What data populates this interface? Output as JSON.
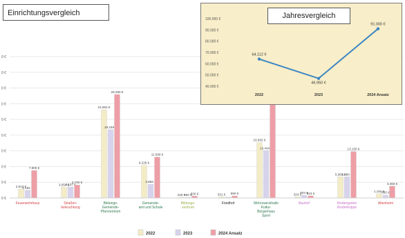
{
  "main_title": "Einrichtungsvergleich",
  "inset_title": "Jahresvergleich",
  "chart_data": [
    {
      "type": "bar",
      "title": "Einrichtungsvergleich",
      "categories": [
        "Feuerwehrhaus",
        "Straßen-beleuchtung",
        "Bildungs-/Gemeinde-Pfarrzentrum",
        "Gemeinde-amt und Schule",
        "Bildungs-zentrum",
        "Friedhof",
        "Mehrzweckhalle/Kultur-/Bürgerhaus/Sport",
        "Bauhof",
        "Kindergarten/Kinderkrippe",
        "Altenheim"
      ],
      "category_colors": [
        "#d04545",
        "#d04545",
        "#2f7a4f",
        "#2f7a4f",
        "#9bb04a",
        "#222222",
        "#2f7a4f",
        "#c86ec8",
        "#c86ec8",
        "#d04545"
      ],
      "series": [
        {
          "name": "2022",
          "color": "#f3ecc6",
          "values": [
            2510,
            3054,
            24963,
            9228,
            230,
            331,
            15692,
            324,
            5963,
            1192
          ]
        },
        {
          "name": "2023",
          "color": "#d7d3ec",
          "values": [
            2192,
            3137,
            19349,
            3894,
            180,
            250,
            13404,
            804,
            5980,
            835
          ]
        },
        {
          "name": "2024 Ansatz",
          "color": "#ee9ea6",
          "values": [
            7800,
            3700,
            29280,
            11590,
            530,
            590,
            32850,
            624,
            13150,
            3360
          ]
        }
      ],
      "data_labels": {
        "2022": [
          "2.510 €",
          "3.054 €",
          "24.963 €",
          "9.228 €",
          "230 €",
          "331 €",
          "15.692 €",
          "324 €",
          "5.963 €",
          "1.192 €"
        ],
        "2023": [
          "2.192 €",
          "3.137 €",
          "19.349 €",
          "3.894 €",
          "180 €",
          "",
          "13.404 €",
          "804 €",
          "5.980 €",
          "835 €"
        ],
        "2024 Ansatz": [
          "7.800 €",
          "3.700 €",
          "29.280 €",
          "11.590 €",
          "530 €",
          "590 €",
          "32.850 €",
          "624 €",
          "13.150 €",
          "3.360 €"
        ]
      },
      "ylim": [
        0,
        40000
      ],
      "ytick_labels": [
        "0 €",
        "0 €",
        "0 €",
        "0 €",
        "0 €",
        "0 €",
        "0 €",
        "0 €",
        "0 €",
        "0 €"
      ],
      "legend_position": "bottom"
    },
    {
      "type": "line",
      "title": "Jahresvergleich",
      "categories": [
        "2022",
        "2023",
        "2024 Ansatz"
      ],
      "values": [
        64112,
        46950,
        91000
      ],
      "point_labels": [
        "64.112 €",
        "46.950 €",
        "91.000 €"
      ],
      "ylim": [
        40000,
        100000
      ],
      "yticks": [
        "40.000 €",
        "50.000 €",
        "60.000 €",
        "70.000 €",
        "80.000 €",
        "90.000 €",
        "100.000 €"
      ],
      "color": "#3c86c3"
    }
  ]
}
